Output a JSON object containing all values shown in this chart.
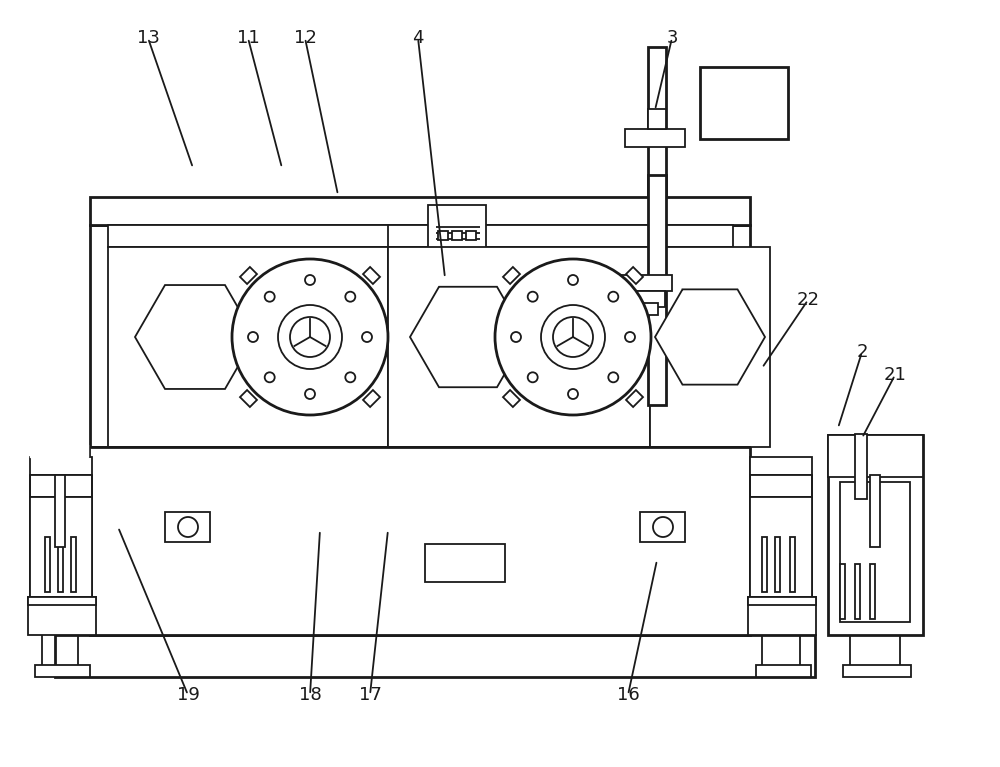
{
  "bg_color": "#ffffff",
  "line_color": "#1a1a1a",
  "lw": 1.3,
  "lw2": 2.0,
  "fig_width": 10.0,
  "fig_height": 7.67,
  "labels": [
    [
      "13",
      148,
      38,
      193,
      168
    ],
    [
      "11",
      248,
      38,
      282,
      168
    ],
    [
      "12",
      305,
      38,
      338,
      195
    ],
    [
      "4",
      418,
      38,
      445,
      278
    ],
    [
      "3",
      672,
      38,
      655,
      110
    ],
    [
      "22",
      808,
      300,
      762,
      368
    ],
    [
      "2",
      862,
      352,
      838,
      428
    ],
    [
      "21",
      895,
      375,
      862,
      438
    ],
    [
      "16",
      628,
      695,
      657,
      560
    ],
    [
      "17",
      370,
      695,
      388,
      530
    ],
    [
      "18",
      310,
      695,
      320,
      530
    ],
    [
      "19",
      188,
      695,
      118,
      527
    ]
  ]
}
